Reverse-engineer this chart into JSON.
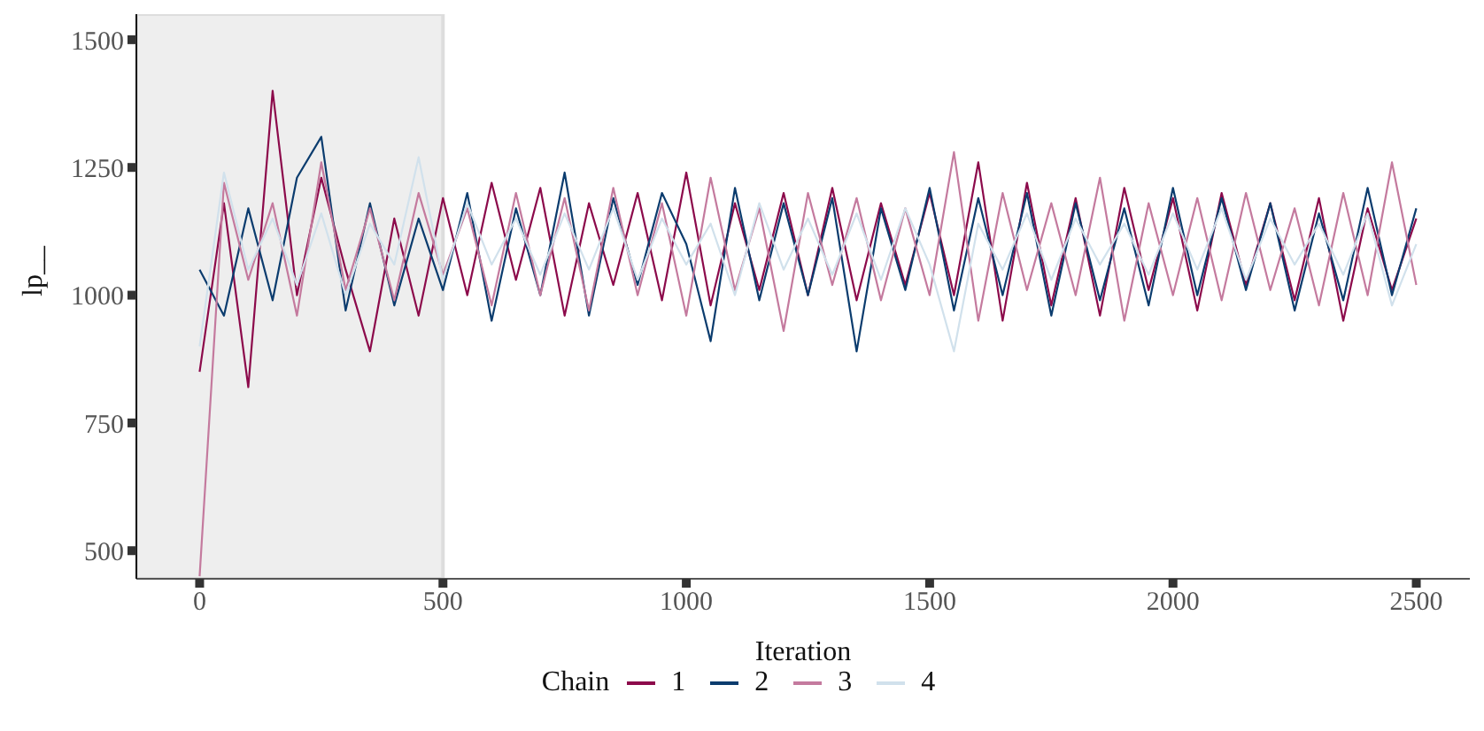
{
  "chart_data": {
    "type": "line",
    "xlabel": "Iteration",
    "ylabel": "lp__",
    "legend_title": "Chain",
    "legend": "bottom",
    "grid": false,
    "marker": "none",
    "line_style": "solid",
    "x": [
      0,
      50,
      100,
      150,
      200,
      250,
      300,
      350,
      400,
      450,
      500,
      550,
      600,
      650,
      700,
      750,
      800,
      850,
      900,
      950,
      1000,
      1050,
      1100,
      1150,
      1200,
      1250,
      1300,
      1350,
      1400,
      1450,
      1500,
      1550,
      1600,
      1650,
      1700,
      1750,
      1800,
      1850,
      1900,
      1950,
      2000,
      2050,
      2100,
      2150,
      2200,
      2250,
      2300,
      2350,
      2400,
      2450,
      2500
    ],
    "xlim": [
      -130,
      2610
    ],
    "xticks": [
      0,
      500,
      1000,
      1500,
      2000,
      2500
    ],
    "ylim": [
      445,
      1550
    ],
    "yticks": [
      500,
      750,
      1000,
      1250,
      1500
    ],
    "bands": [
      {
        "axis": "x",
        "from": -130,
        "to": 500,
        "color": "#eeeeee"
      }
    ],
    "series": [
      {
        "name": "1",
        "color": "#8c0a4b",
        "values": [
          850,
          1180,
          820,
          1400,
          1000,
          1230,
          1050,
          890,
          1150,
          960,
          1190,
          1000,
          1220,
          1030,
          1210,
          960,
          1180,
          1020,
          1200,
          990,
          1240,
          980,
          1180,
          1010,
          1200,
          1000,
          1210,
          990,
          1180,
          1020,
          1200,
          1000,
          1260,
          950,
          1220,
          980,
          1190,
          960,
          1210,
          1010,
          1190,
          970,
          1200,
          1020,
          1180,
          990,
          1190,
          950,
          1170,
          1010,
          1150
        ]
      },
      {
        "name": "2",
        "color": "#0b3c6e",
        "values": [
          1050,
          960,
          1170,
          990,
          1230,
          1310,
          970,
          1180,
          980,
          1150,
          1010,
          1200,
          950,
          1170,
          1000,
          1240,
          960,
          1190,
          1020,
          1200,
          1100,
          910,
          1210,
          990,
          1180,
          1000,
          1190,
          890,
          1170,
          1010,
          1210,
          970,
          1190,
          1000,
          1200,
          960,
          1180,
          990,
          1170,
          980,
          1210,
          1000,
          1190,
          1010,
          1180,
          970,
          1160,
          990,
          1210,
          1000,
          1170
        ]
      },
      {
        "name": "3",
        "color": "#c47a9e",
        "values": [
          450,
          1220,
          1030,
          1180,
          960,
          1260,
          1010,
          1170,
          990,
          1200,
          1040,
          1170,
          980,
          1200,
          1000,
          1190,
          970,
          1210,
          1000,
          1180,
          960,
          1230,
          1010,
          1170,
          930,
          1200,
          1020,
          1190,
          990,
          1170,
          1000,
          1280,
          950,
          1200,
          1010,
          1180,
          1000,
          1230,
          950,
          1180,
          1000,
          1190,
          990,
          1200,
          1010,
          1170,
          980,
          1200,
          1000,
          1260,
          1020
        ]
      },
      {
        "name": "4",
        "color": "#d1e1ec",
        "values": [
          900,
          1240,
          1050,
          1150,
          1020,
          1160,
          1000,
          1140,
          1060,
          1270,
          1030,
          1180,
          1060,
          1150,
          1040,
          1160,
          1050,
          1170,
          1030,
          1150,
          1060,
          1140,
          1000,
          1180,
          1050,
          1150,
          1040,
          1160,
          1030,
          1170,
          1060,
          890,
          1140,
          1050,
          1160,
          1030,
          1150,
          1060,
          1140,
          1040,
          1160,
          1050,
          1170,
          1030,
          1150,
          1060,
          1140,
          1040,
          1160,
          980,
          1100
        ]
      }
    ]
  }
}
